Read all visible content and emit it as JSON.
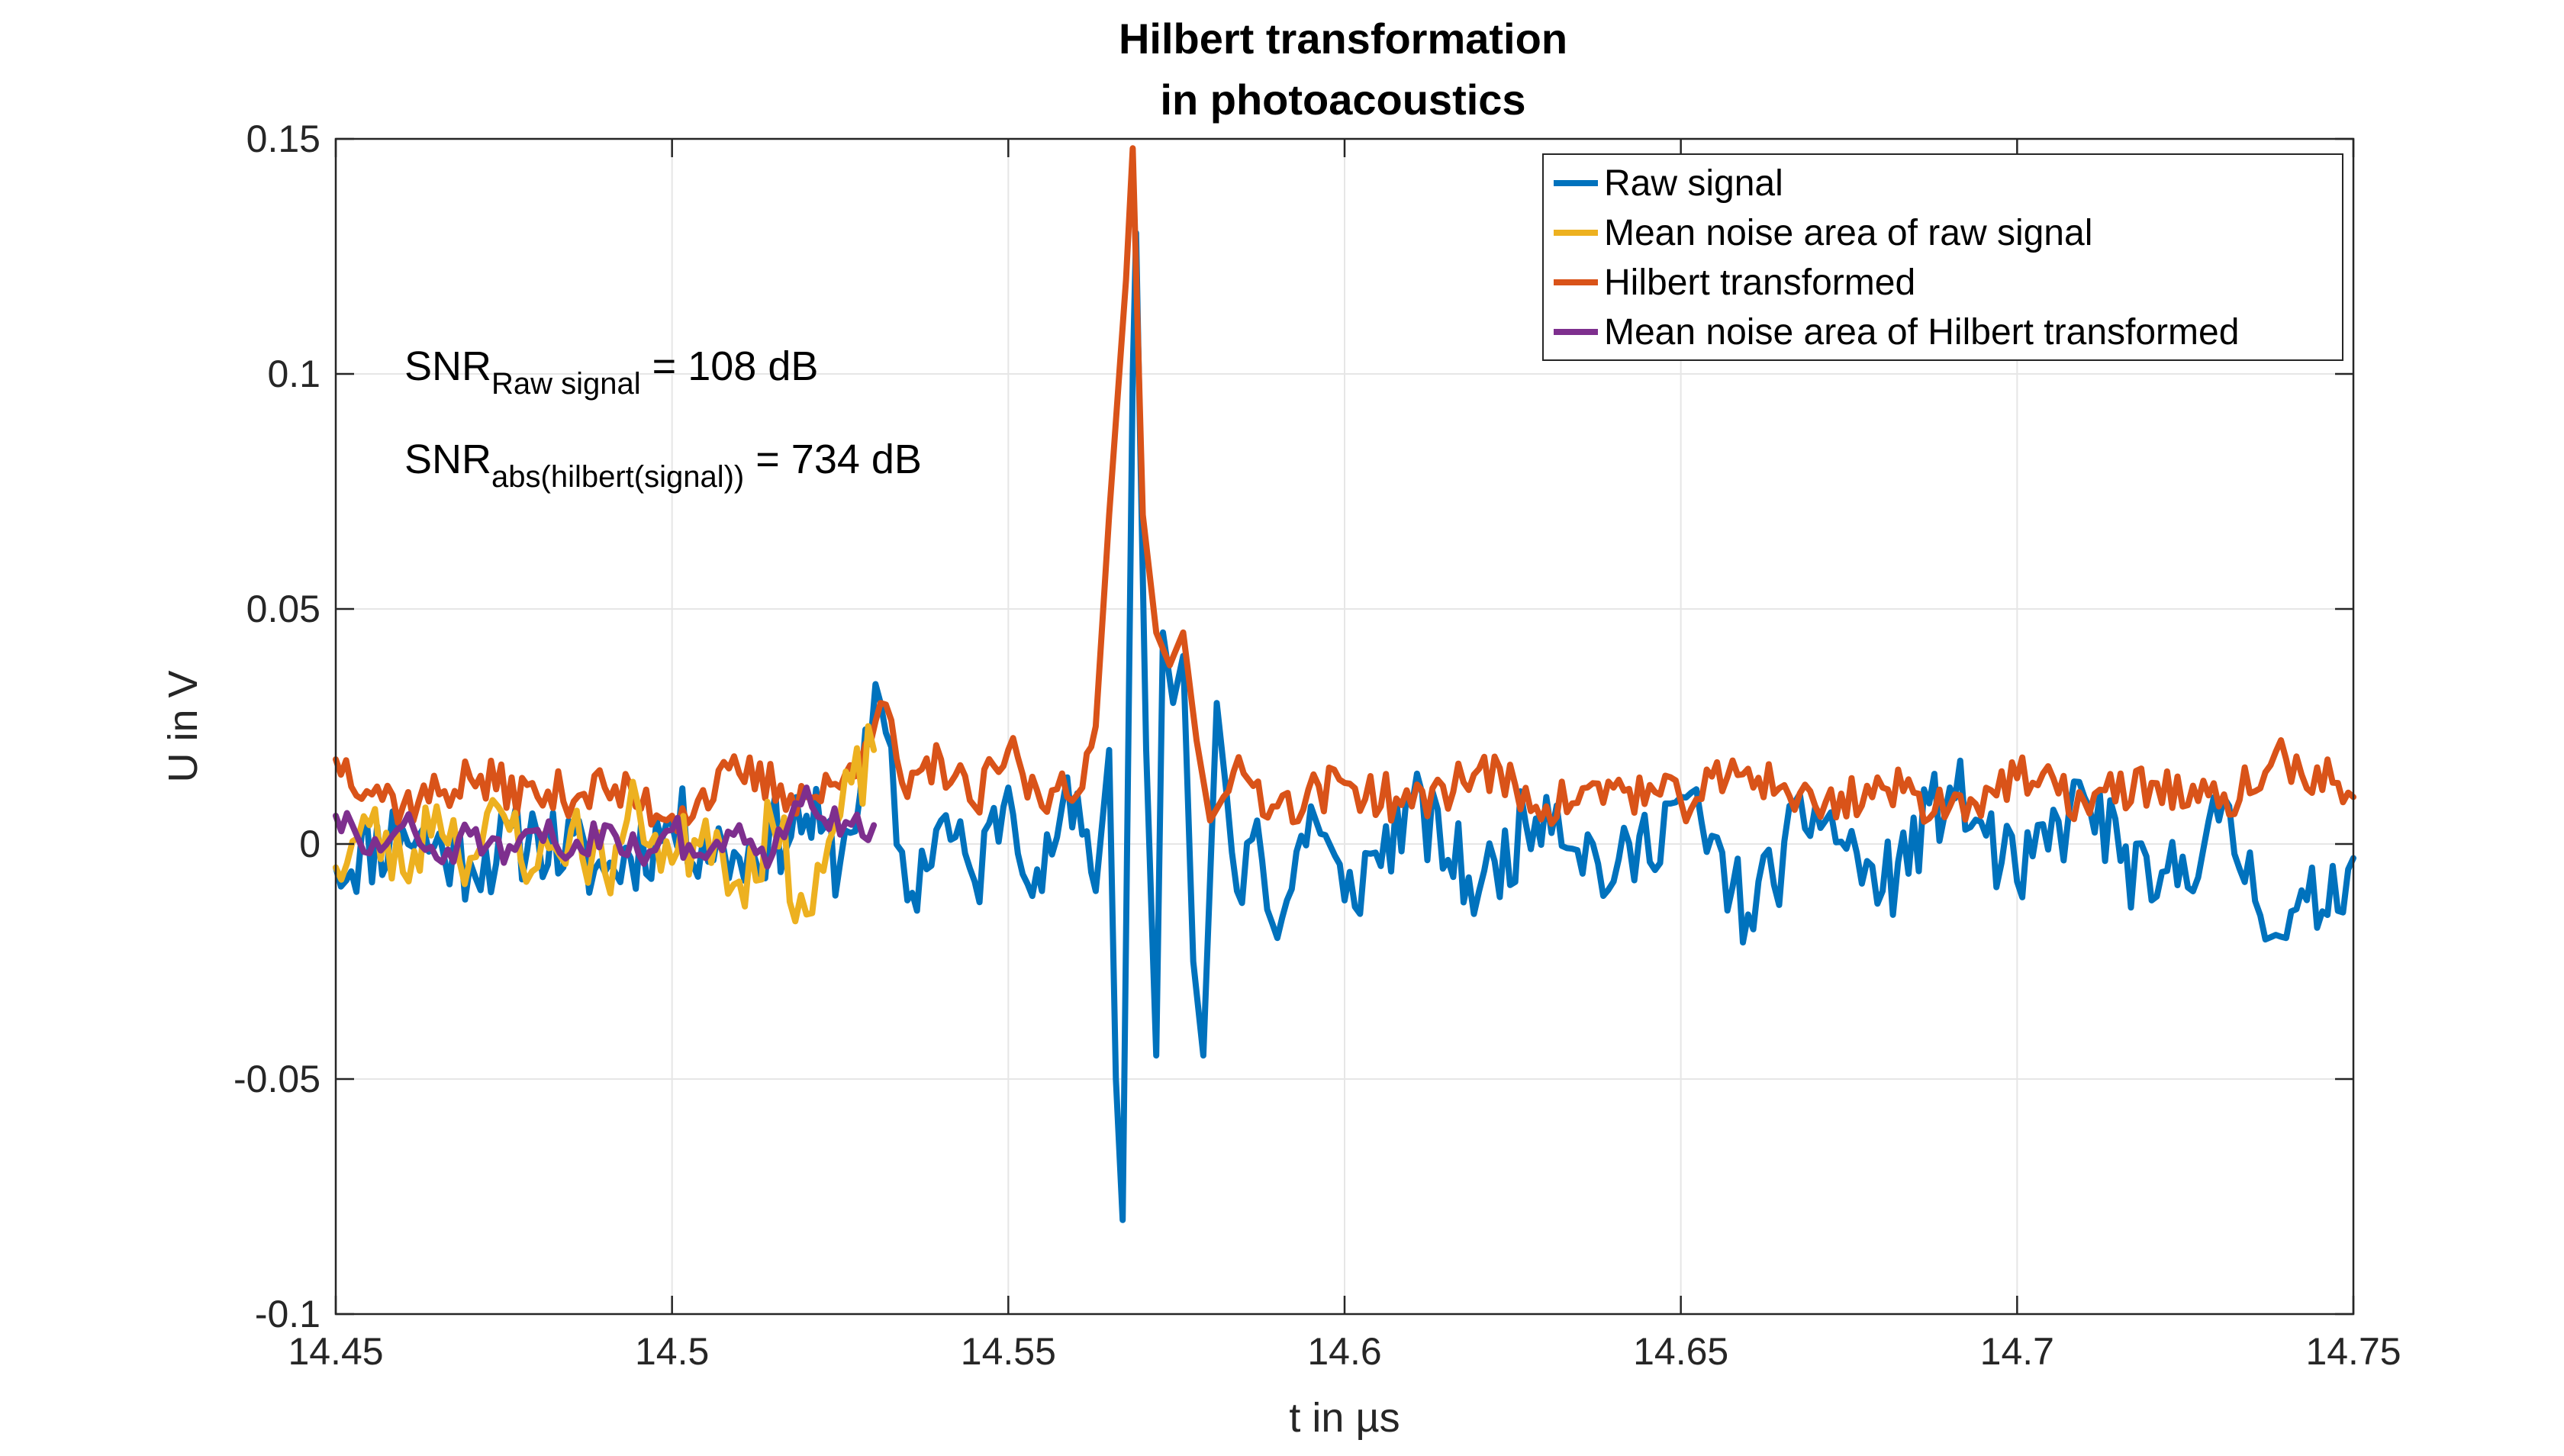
{
  "colors": {
    "raw": "#0072BD",
    "mean_raw": "#EDB120",
    "hilbert": "#D95319",
    "mean_hilbert": "#7E2F8E",
    "grid": "#e6e6e6",
    "axis": "#262626"
  },
  "chart_data": {
    "type": "line",
    "title": [
      "Hilbert transformation",
      "in photoacoustics"
    ],
    "xlabel": "t in µs",
    "ylabel": "U in V",
    "xlim": [
      14.45,
      14.75
    ],
    "ylim": [
      -0.1,
      0.15
    ],
    "xticks": [
      14.45,
      14.5,
      14.55,
      14.6,
      14.65,
      14.7,
      14.75
    ],
    "xtick_labels": [
      "14.45",
      "14.5",
      "14.55",
      "14.6",
      "14.65",
      "14.7",
      "14.75"
    ],
    "yticks": [
      -0.1,
      -0.05,
      0,
      0.05,
      0.1,
      0.15
    ],
    "ytick_labels": [
      "-0.1",
      "-0.05",
      "0",
      "0.05",
      "0.1",
      "0.15"
    ],
    "grid": true,
    "legend_position": "top-right",
    "annotations": [
      {
        "text": "SNR",
        "sub": "Raw signal",
        "rest": " = 108 dB"
      },
      {
        "text": "SNR",
        "sub": "abs(hilbert(signal))",
        "rest": " = 734 dB"
      }
    ],
    "series": [
      {
        "name": "Raw signal",
        "color_key": "raw",
        "x": [
          14.45,
          14.46,
          14.47,
          14.48,
          14.49,
          14.5,
          14.51,
          14.52,
          14.525,
          14.531,
          14.535,
          14.54,
          14.545,
          14.55,
          14.555,
          14.558,
          14.561,
          14.563,
          14.565,
          14.566,
          14.567,
          14.5685,
          14.569,
          14.5705,
          14.572,
          14.573,
          14.5745,
          14.576,
          14.5775,
          14.579,
          14.581,
          14.584,
          14.587,
          14.59,
          14.595,
          14.6,
          14.61,
          14.62,
          14.63,
          14.64,
          14.65,
          14.66,
          14.67,
          14.68,
          14.69,
          14.7,
          14.71,
          14.72,
          14.73,
          14.74,
          14.75
        ],
        "y": [
          -0.005,
          0.003,
          -0.004,
          0.002,
          -0.006,
          0.004,
          -0.003,
          0.006,
          -0.004,
          0.03,
          -0.012,
          0.005,
          -0.008,
          0.012,
          -0.01,
          0.008,
          0.002,
          -0.01,
          0.02,
          -0.05,
          -0.08,
          0.1,
          0.13,
          0.02,
          -0.045,
          0.045,
          0.03,
          0.04,
          -0.025,
          -0.045,
          0.03,
          -0.01,
          0.005,
          -0.02,
          0.008,
          -0.012,
          0.008,
          -0.01,
          0.01,
          -0.008,
          0.01,
          -0.015,
          0.008,
          -0.01,
          0.012,
          -0.008,
          0.01,
          -0.012,
          0.005,
          -0.02,
          -0.003
        ]
      },
      {
        "name": "Mean noise area of raw signal",
        "color_key": "mean_raw",
        "x": [
          14.45,
          14.455,
          14.46,
          14.465,
          14.47,
          14.475,
          14.48,
          14.485,
          14.49,
          14.495,
          14.5,
          14.505,
          14.51,
          14.515,
          14.52,
          14.525,
          14.53
        ],
        "y": [
          -0.005,
          0.004,
          -0.006,
          0.008,
          -0.003,
          0.006,
          -0.005,
          0.003,
          -0.006,
          0.008,
          -0.004,
          0.005,
          -0.008,
          0.004,
          -0.015,
          0.006,
          0.02
        ]
      },
      {
        "name": "Hilbert transformed",
        "color_key": "hilbert",
        "x": [
          14.45,
          14.46,
          14.47,
          14.48,
          14.49,
          14.5,
          14.51,
          14.52,
          14.525,
          14.531,
          14.535,
          14.54,
          14.545,
          14.55,
          14.555,
          14.558,
          14.561,
          14.563,
          14.565,
          14.5675,
          14.5685,
          14.57,
          14.572,
          14.574,
          14.576,
          14.578,
          14.58,
          14.582,
          14.585,
          14.59,
          14.6,
          14.61,
          14.62,
          14.63,
          14.64,
          14.65,
          14.66,
          14.67,
          14.68,
          14.69,
          14.7,
          14.71,
          14.72,
          14.73,
          14.74,
          14.75
        ],
        "y": [
          0.018,
          0.008,
          0.014,
          0.01,
          0.012,
          0.006,
          0.015,
          0.01,
          0.012,
          0.03,
          0.01,
          0.018,
          0.008,
          0.02,
          0.008,
          0.015,
          0.012,
          0.025,
          0.07,
          0.12,
          0.148,
          0.07,
          0.045,
          0.038,
          0.045,
          0.022,
          0.005,
          0.01,
          0.015,
          0.008,
          0.013,
          0.008,
          0.016,
          0.008,
          0.012,
          0.009,
          0.016,
          0.008,
          0.012,
          0.008,
          0.014,
          0.009,
          0.013,
          0.008,
          0.018,
          0.01
        ]
      },
      {
        "name": "Mean noise area of Hilbert transformed",
        "color_key": "mean_hilbert",
        "x": [
          14.45,
          14.455,
          14.46,
          14.465,
          14.47,
          14.475,
          14.48,
          14.485,
          14.49,
          14.495,
          14.5,
          14.505,
          14.51,
          14.515,
          14.52,
          14.525,
          14.53
        ],
        "y": [
          0.006,
          -0.002,
          0.004,
          -0.003,
          0.002,
          -0.004,
          0.003,
          -0.002,
          0.004,
          -0.002,
          0.003,
          -0.003,
          0.004,
          -0.002,
          0.012,
          0.002,
          0.004
        ]
      }
    ]
  }
}
